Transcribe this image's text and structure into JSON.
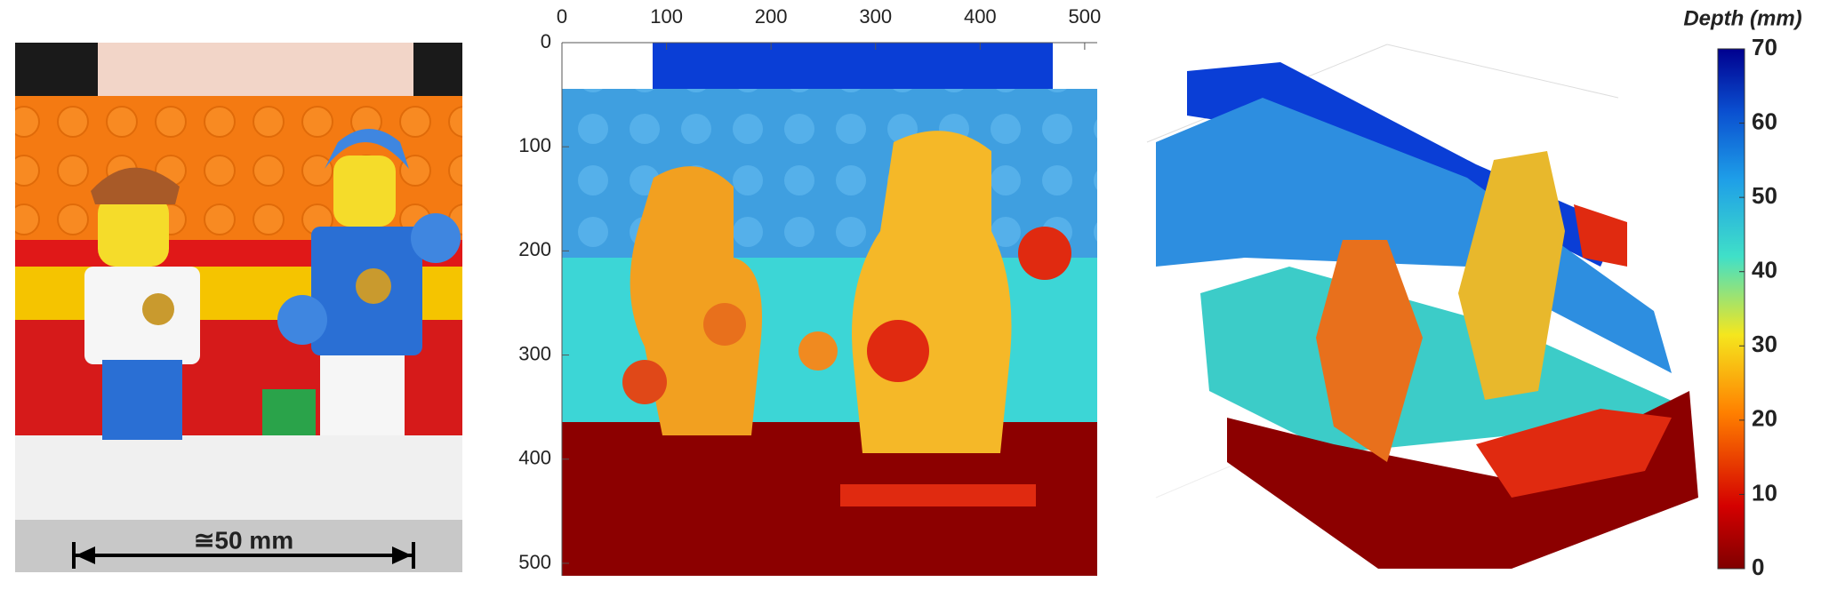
{
  "photo": {
    "scale_label": "≅50 mm"
  },
  "depth_map": {
    "xlim": [
      0,
      512
    ],
    "xticks": [
      0,
      100,
      200,
      300,
      400,
      500
    ],
    "ylim": [
      0,
      512
    ],
    "yticks": [
      0,
      100,
      200,
      300,
      400,
      500
    ]
  },
  "colorbar": {
    "title": "Depth (mm)",
    "lim": [
      0,
      70
    ],
    "ticks": [
      0,
      10,
      20,
      30,
      40,
      50,
      60,
      70
    ]
  }
}
